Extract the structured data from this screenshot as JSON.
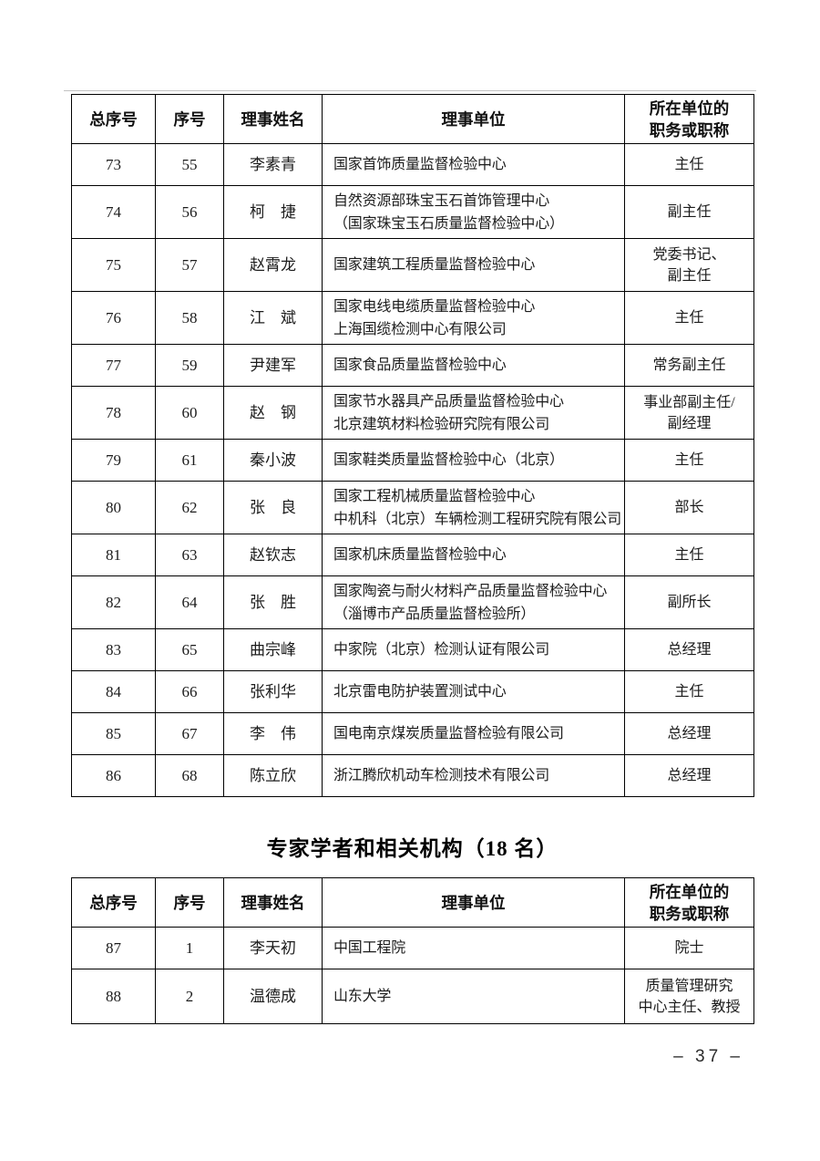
{
  "page_number": "– 37 –",
  "section2_title": "专家学者和相关机构（18 名）",
  "columns": {
    "c1": "总序号",
    "c2": "序号",
    "c3": "理事姓名",
    "c4": "理事单位",
    "c5": "所在单位的\n职务或职称"
  },
  "table1": {
    "rows": [
      {
        "total_no": "73",
        "no": "55",
        "name": "李素青",
        "unit": "国家首饰质量监督检验中心",
        "title": "主任"
      },
      {
        "total_no": "74",
        "no": "56",
        "name": "柯　捷",
        "unit": "自然资源部珠宝玉石首饰管理中心\n（国家珠宝玉石质量监督检验中心）",
        "title": "副主任"
      },
      {
        "total_no": "75",
        "no": "57",
        "name": "赵霄龙",
        "unit": "国家建筑工程质量监督检验中心",
        "title": "党委书记、\n副主任"
      },
      {
        "total_no": "76",
        "no": "58",
        "name": "江　斌",
        "unit": "国家电线电缆质量监督检验中心\n上海国缆检测中心有限公司",
        "title": "主任"
      },
      {
        "total_no": "77",
        "no": "59",
        "name": "尹建军",
        "unit": "国家食品质量监督检验中心",
        "title": "常务副主任"
      },
      {
        "total_no": "78",
        "no": "60",
        "name": "赵　钢",
        "unit": "国家节水器具产品质量监督检验中心\n北京建筑材料检验研究院有限公司",
        "title": "事业部副主任/\n副经理"
      },
      {
        "total_no": "79",
        "no": "61",
        "name": "秦小波",
        "unit": "国家鞋类质量监督检验中心（北京）",
        "title": "主任"
      },
      {
        "total_no": "80",
        "no": "62",
        "name": "张　良",
        "unit": "国家工程机械质量监督检验中心\n中机科（北京）车辆检测工程研究院有限公司",
        "title": "部长"
      },
      {
        "total_no": "81",
        "no": "63",
        "name": "赵钦志",
        "unit": "国家机床质量监督检验中心",
        "title": "主任"
      },
      {
        "total_no": "82",
        "no": "64",
        "name": "张　胜",
        "unit": "国家陶瓷与耐火材料产品质量监督检验中心\n（淄博市产品质量监督检验所）",
        "title": "副所长"
      },
      {
        "total_no": "83",
        "no": "65",
        "name": "曲宗峰",
        "unit": "中家院（北京）检测认证有限公司",
        "title": "总经理"
      },
      {
        "total_no": "84",
        "no": "66",
        "name": "张利华",
        "unit": "北京雷电防护装置测试中心",
        "title": "主任"
      },
      {
        "total_no": "85",
        "no": "67",
        "name": "李　伟",
        "unit": "国电南京煤炭质量监督检验有限公司",
        "title": "总经理"
      },
      {
        "total_no": "86",
        "no": "68",
        "name": "陈立欣",
        "unit": "浙江腾欣机动车检测技术有限公司",
        "title": "总经理"
      }
    ]
  },
  "table2": {
    "rows": [
      {
        "total_no": "87",
        "no": "1",
        "name": "李天初",
        "unit": "中国工程院",
        "title": "院士"
      },
      {
        "total_no": "88",
        "no": "2",
        "name": "温德成",
        "unit": "山东大学",
        "title": "质量管理研究\n中心主任、教授"
      }
    ]
  }
}
